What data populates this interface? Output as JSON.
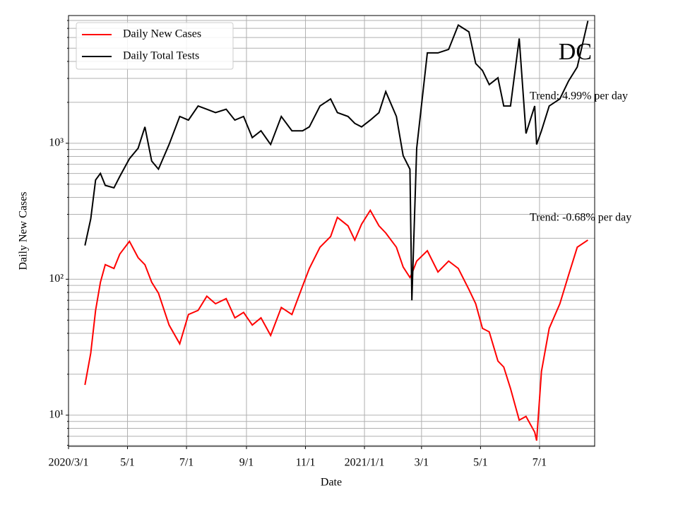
{
  "chart_data": {
    "type": "line",
    "x_label": "Date",
    "y_label": "Daily New Cases",
    "x": [
      "2020-03-18",
      "2020-03-24",
      "2020-03-29",
      "2020-04-03",
      "2020-04-08",
      "2020-04-17",
      "2020-04-23",
      "2020-05-03",
      "2020-05-12",
      "2020-05-19",
      "2020-05-26",
      "2020-06-02",
      "2020-06-13",
      "2020-06-24",
      "2020-07-03",
      "2020-07-13",
      "2020-07-22",
      "2020-07-31",
      "2020-08-11",
      "2020-08-20",
      "2020-08-29",
      "2020-09-07",
      "2020-09-16",
      "2020-09-26",
      "2020-10-07",
      "2020-10-18",
      "2020-10-29",
      "2020-11-05",
      "2020-11-16",
      "2020-11-27",
      "2020-12-04",
      "2020-12-15",
      "2020-12-22",
      "2020-12-29",
      "2021-01-07",
      "2021-01-16",
      "2021-01-23",
      "2021-02-03",
      "2021-02-10",
      "2021-02-17",
      "2021-02-19",
      "2021-02-24",
      "2021-03-07",
      "2021-03-18",
      "2021-03-29",
      "2021-04-08",
      "2021-04-19",
      "2021-04-26",
      "2021-05-03",
      "2021-05-10",
      "2021-05-19",
      "2021-05-25",
      "2021-06-01",
      "2021-06-10",
      "2021-06-17",
      "2021-06-26",
      "2021-06-28",
      "2021-07-03",
      "2021-07-11",
      "2021-07-22",
      "2021-07-31",
      "2021-08-09",
      "2021-08-20"
    ],
    "series": [
      {
        "name": "Daily New Cases",
        "color": "#ff0000",
        "values": [
          16.7,
          28.6,
          59,
          95,
          128,
          120,
          153,
          190,
          144,
          128,
          95,
          79,
          46,
          33.5,
          55,
          59,
          75,
          66,
          72,
          52,
          57,
          46,
          52,
          38.6,
          62,
          55,
          89,
          120,
          172,
          206,
          285,
          247,
          194,
          254,
          321,
          247,
          219,
          172,
          123,
          103,
          110,
          136,
          162,
          113,
          136,
          120,
          84,
          66,
          43.5,
          41,
          25,
          22.6,
          15.7,
          9.2,
          9.8,
          7.5,
          6.5,
          21,
          43.5,
          66,
          107,
          172,
          194
        ]
      },
      {
        "name": "Daily Total Tests",
        "color": "#000000",
        "values": [
          177,
          278,
          537,
          600,
          490,
          470,
          570,
          770,
          920,
          1320,
          740,
          645,
          980,
          1575,
          1480,
          1880,
          1780,
          1680,
          1780,
          1480,
          1575,
          1100,
          1235,
          980,
          1575,
          1235,
          1235,
          1320,
          1880,
          2120,
          1680,
          1575,
          1400,
          1320,
          1480,
          1680,
          2400,
          1575,
          810,
          645,
          70,
          920,
          4620,
          4620,
          4900,
          7400,
          6600,
          3860,
          3430,
          2700,
          3030,
          1880,
          1880,
          5900,
          1180,
          1880,
          980,
          1235,
          1880,
          2120,
          2870,
          3640,
          7950
        ]
      }
    ],
    "xlim": [
      "2020-03-01",
      "2021-08-27"
    ],
    "xticks": [
      {
        "value": "2020-03-01",
        "label": "2020/3/1"
      },
      {
        "value": "2020-05-01",
        "label": "5/1"
      },
      {
        "value": "2020-07-01",
        "label": "7/1"
      },
      {
        "value": "2020-09-01",
        "label": "9/1"
      },
      {
        "value": "2020-11-01",
        "label": "11/1"
      },
      {
        "value": "2021-01-01",
        "label": "2021/1/1"
      },
      {
        "value": "2021-03-01",
        "label": "3/1"
      },
      {
        "value": "2021-05-01",
        "label": "5/1"
      },
      {
        "value": "2021-07-01",
        "label": "7/1"
      }
    ],
    "ylim": [
      5.9,
      8700
    ],
    "yticks": [
      {
        "value": 10,
        "label": "10¹"
      },
      {
        "value": 100,
        "label": "10²"
      },
      {
        "value": 1000,
        "label": "10³"
      }
    ],
    "yminorticks": [
      6,
      7,
      8,
      9,
      20,
      30,
      40,
      50,
      60,
      70,
      80,
      90,
      200,
      300,
      400,
      500,
      600,
      700,
      800,
      900,
      2000,
      3000,
      4000,
      5000,
      6000,
      7000,
      8000
    ],
    "log_y": true,
    "grid": true,
    "legend": "upper left",
    "annotations": [
      "DC",
      "Trend: 4.99% per day",
      "Trend: -0.68% per day"
    ]
  }
}
